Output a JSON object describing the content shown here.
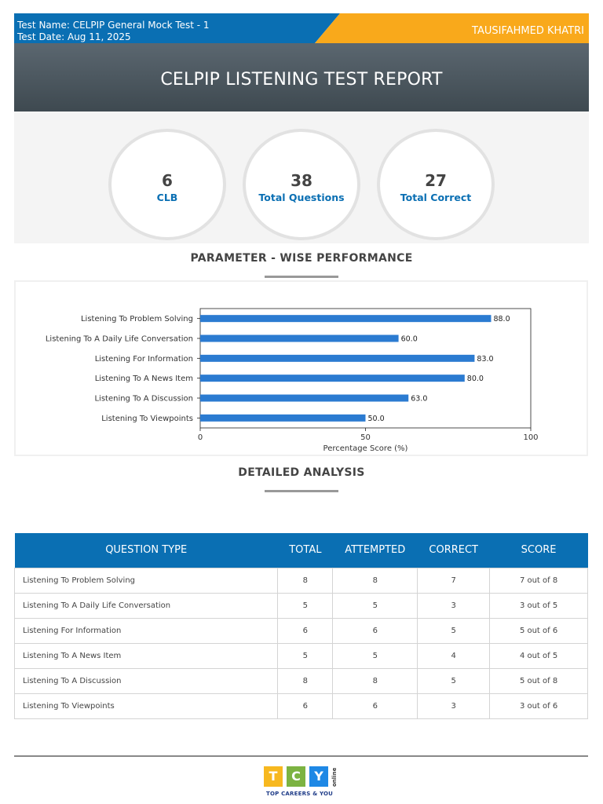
{
  "header": {
    "test_name": "Test Name: CELPIP General Mock Test - 1",
    "test_date": "Test Date: Aug 11, 2025",
    "user_name": "TAUSIFAHMED KHATRI",
    "report_title": "CELPIP LISTENING TEST REPORT"
  },
  "stats": [
    {
      "value": "6",
      "label": "CLB"
    },
    {
      "value": "38",
      "label": "Total Questions"
    },
    {
      "value": "27",
      "label": "Total Correct"
    }
  ],
  "sections": {
    "parameter_title": "PARAMETER - WISE PERFORMANCE",
    "detailed_title": "DETAILED ANALYSIS"
  },
  "chart_data": {
    "type": "bar",
    "orientation": "horizontal",
    "categories": [
      "Listening To Problem Solving",
      "Listening To A Daily Life Conversation",
      "Listening For Information",
      "Listening To A News Item",
      "Listening To A Discussion",
      "Listening To Viewpoints"
    ],
    "values": [
      88.0,
      60.0,
      83.0,
      80.0,
      63.0,
      50.0
    ],
    "value_labels": [
      "88.0",
      "60.0",
      "83.0",
      "80.0",
      "63.0",
      "50.0"
    ],
    "xlabel": "Percentage Score (%)",
    "xlim": [
      0,
      100
    ],
    "xticks": [
      "0",
      "50",
      "100"
    ],
    "bar_color": "#2b7bd1",
    "grid": false
  },
  "table": {
    "headers": [
      "QUESTION TYPE",
      "TOTAL",
      "ATTEMPTED",
      "CORRECT",
      "SCORE"
    ],
    "rows": [
      [
        "Listening To Problem Solving",
        "8",
        "8",
        "7",
        "7 out of 8"
      ],
      [
        "Listening To A Daily Life Conversation",
        "5",
        "5",
        "3",
        "3 out of 5"
      ],
      [
        "Listening For Information",
        "6",
        "6",
        "5",
        "5 out of 6"
      ],
      [
        "Listening To A News Item",
        "5",
        "5",
        "4",
        "4 out of 5"
      ],
      [
        "Listening To A Discussion",
        "8",
        "8",
        "5",
        "5 out of 8"
      ],
      [
        "Listening To Viewpoints",
        "6",
        "6",
        "3",
        "3 out of 6"
      ]
    ]
  },
  "logo": {
    "letters": [
      "T",
      "C",
      "Y"
    ],
    "colors": [
      "#f7b81f",
      "#7cb342",
      "#1e88e5"
    ],
    "online": "online",
    "tagline": "TOP CAREERS & YOU"
  },
  "colors": {
    "primary_blue": "#0a6fb3",
    "accent_orange": "#f9a91b",
    "header_dark": "#4a555c"
  }
}
